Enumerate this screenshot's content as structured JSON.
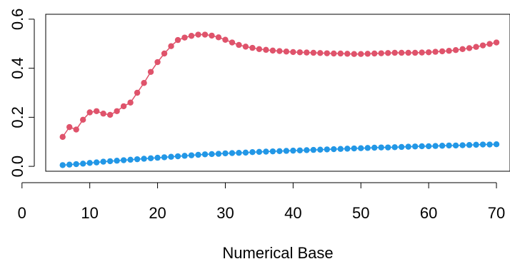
{
  "chart_data": {
    "type": "line",
    "title": "",
    "xlabel": "Numerical Base",
    "ylabel": "",
    "xlim": [
      3.5,
      72
    ],
    "ylim": [
      -0.02,
      0.62
    ],
    "xticks": [
      0,
      10,
      20,
      30,
      40,
      50,
      60,
      70
    ],
    "yticks": [
      0.0,
      0.2,
      0.4,
      0.6
    ],
    "xtick_labels": [
      "0",
      "10",
      "20",
      "30",
      "40",
      "50",
      "60",
      "70"
    ],
    "ytick_labels": [
      "0.0",
      "0.2",
      "0.4",
      "0.6"
    ],
    "grid": false,
    "legend": "none",
    "series": [
      {
        "color": "#DF536B",
        "x": [
          6,
          7,
          8,
          9,
          10,
          11,
          12,
          13,
          14,
          15,
          16,
          17,
          18,
          19,
          20,
          21,
          22,
          23,
          24,
          25,
          26,
          27,
          28,
          29,
          30,
          31,
          32,
          33,
          34,
          35,
          36,
          37,
          38,
          39,
          40,
          41,
          42,
          43,
          44,
          45,
          46,
          47,
          48,
          49,
          50,
          51,
          52,
          53,
          54,
          55,
          56,
          57,
          58,
          59,
          60,
          61,
          62,
          63,
          64,
          65,
          66,
          67,
          68,
          69,
          70
        ],
        "values": [
          0.12,
          0.16,
          0.15,
          0.19,
          0.22,
          0.225,
          0.215,
          0.21,
          0.225,
          0.245,
          0.26,
          0.3,
          0.34,
          0.385,
          0.425,
          0.46,
          0.49,
          0.515,
          0.525,
          0.532,
          0.537,
          0.537,
          0.533,
          0.526,
          0.516,
          0.505,
          0.495,
          0.488,
          0.483,
          0.478,
          0.475,
          0.472,
          0.47,
          0.468,
          0.466,
          0.465,
          0.464,
          0.463,
          0.462,
          0.461,
          0.46,
          0.46,
          0.459,
          0.458,
          0.458,
          0.459,
          0.46,
          0.461,
          0.462,
          0.463,
          0.463,
          0.463,
          0.463,
          0.464,
          0.465,
          0.467,
          0.469,
          0.471,
          0.474,
          0.478,
          0.482,
          0.487,
          0.493,
          0.499,
          0.505
        ]
      },
      {
        "color": "#2297E6",
        "x": [
          6,
          7,
          8,
          9,
          10,
          11,
          12,
          13,
          14,
          15,
          16,
          17,
          18,
          19,
          20,
          21,
          22,
          23,
          24,
          25,
          26,
          27,
          28,
          29,
          30,
          31,
          32,
          33,
          34,
          35,
          36,
          37,
          38,
          39,
          40,
          41,
          42,
          43,
          44,
          45,
          46,
          47,
          48,
          49,
          50,
          51,
          52,
          53,
          54,
          55,
          56,
          57,
          58,
          59,
          60,
          61,
          62,
          63,
          64,
          65,
          66,
          67,
          68,
          69,
          70
        ],
        "values": [
          0.005,
          0.007,
          0.009,
          0.011,
          0.014,
          0.016,
          0.019,
          0.021,
          0.023,
          0.025,
          0.027,
          0.029,
          0.031,
          0.033,
          0.035,
          0.037,
          0.039,
          0.041,
          0.043,
          0.045,
          0.047,
          0.049,
          0.05,
          0.051,
          0.053,
          0.054,
          0.055,
          0.056,
          0.058,
          0.059,
          0.06,
          0.061,
          0.062,
          0.063,
          0.064,
          0.065,
          0.066,
          0.067,
          0.068,
          0.069,
          0.07,
          0.071,
          0.072,
          0.073,
          0.074,
          0.075,
          0.076,
          0.077,
          0.077,
          0.078,
          0.079,
          0.08,
          0.081,
          0.082,
          0.082,
          0.083,
          0.084,
          0.085,
          0.085,
          0.086,
          0.087,
          0.088,
          0.089,
          0.089,
          0.09
        ]
      }
    ]
  }
}
